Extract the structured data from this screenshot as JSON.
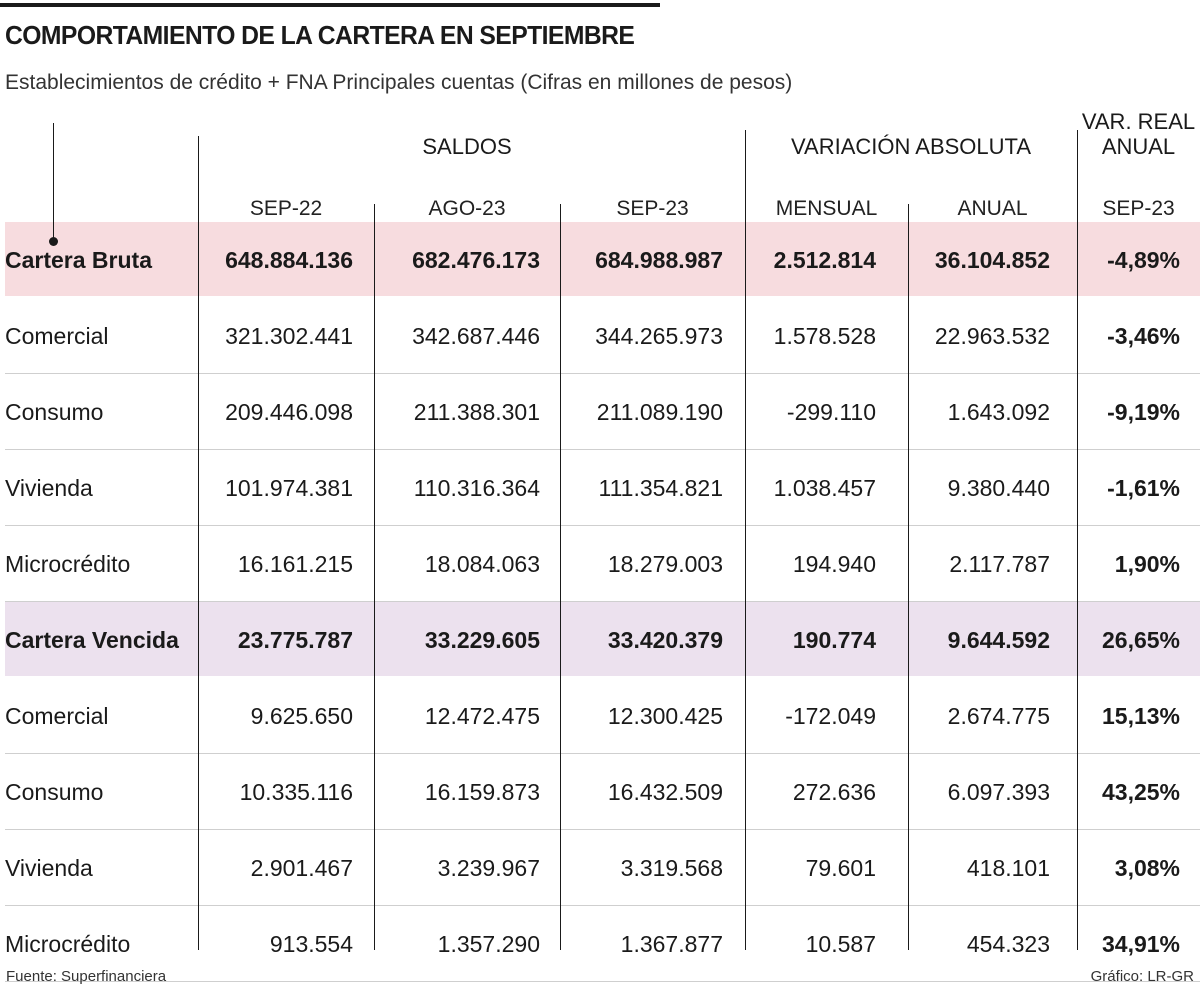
{
  "title": "COMPORTAMIENTO DE LA CARTERA EN SEPTIEMBRE",
  "subtitle": "Establecimientos de crédito + FNA Principales cuentas (Cifras en millones de pesos)",
  "groups": {
    "saldos": "SALDOS",
    "variacion": "VARIACIÓN ABSOLUTA",
    "var_real_1": "VAR. REAL",
    "var_real_2": "ANUAL"
  },
  "columns": [
    "SEP-22",
    "AGO-23",
    "SEP-23",
    "MENSUAL",
    "ANUAL",
    "SEP-23"
  ],
  "chart_data": {
    "type": "table",
    "title": "COMPORTAMIENTO DE LA CARTERA EN SEPTIEMBRE",
    "rows": [
      {
        "label": "Cartera Bruta",
        "values": [
          "648.884.136",
          "682.476.173",
          "684.988.987",
          "2.512.814",
          "36.104.852",
          "-4,89%"
        ]
      },
      {
        "label": "Comercial",
        "values": [
          "321.302.441",
          "342.687.446",
          "344.265.973",
          "1.578.528",
          "22.963.532",
          "-3,46%"
        ]
      },
      {
        "label": "Consumo",
        "values": [
          "209.446.098",
          "211.388.301",
          "211.089.190",
          "-299.110",
          "1.643.092",
          "-9,19%"
        ]
      },
      {
        "label": "Vivienda",
        "values": [
          "101.974.381",
          "110.316.364",
          "111.354.821",
          "1.038.457",
          "9.380.440",
          "-1,61%"
        ]
      },
      {
        "label": "Microcrédito",
        "values": [
          "16.161.215",
          "18.084.063",
          "18.279.003",
          "194.940",
          "2.117.787",
          "1,90%"
        ]
      },
      {
        "label": "Cartera Vencida",
        "values": [
          "23.775.787",
          "33.229.605",
          "33.420.379",
          "190.774",
          "9.644.592",
          "26,65%"
        ]
      },
      {
        "label": "Comercial",
        "values": [
          "9.625.650",
          "12.472.475",
          "12.300.425",
          "-172.049",
          "2.674.775",
          "15,13%"
        ]
      },
      {
        "label": "Consumo",
        "values": [
          "10.335.116",
          "16.159.873",
          "16.432.509",
          "272.636",
          "6.097.393",
          "43,25%"
        ]
      },
      {
        "label": "Vivienda",
        "values": [
          "2.901.467",
          "3.239.967",
          "3.319.568",
          "79.601",
          "418.101",
          "3,08%"
        ]
      },
      {
        "label": "Microcrédito",
        "values": [
          "913.554",
          "1.357.290",
          "1.367.877",
          "10.587",
          "454.323",
          "34,91%"
        ]
      }
    ]
  },
  "footer": {
    "source": "Fuente: Superfinanciera",
    "credit": "Gráfico: LR-GR"
  },
  "colors": {
    "highlight_bruta": "#f7dcdf",
    "highlight_vencida": "#ece1ee",
    "text": "#1a1a1a"
  }
}
